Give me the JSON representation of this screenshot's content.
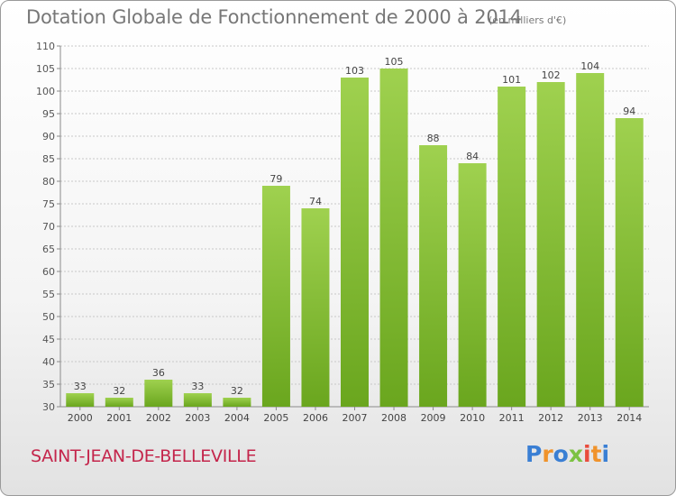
{
  "header": {
    "title": "Dotation Globale de Fonctionnement de 2000 à 2014",
    "subtitle": "(en milliers d'€)"
  },
  "footer": {
    "commune": "SAINT-JEAN-DE-BELLEVILLE",
    "logo": "Proxiti",
    "logo_colors": [
      "#3a7fd4",
      "#f0932b",
      "#3a7fd4",
      "#7cc242",
      "#e94c3d",
      "#f0932b",
      "#3a7fd4"
    ]
  },
  "chart_data": {
    "type": "bar",
    "title": "Dotation Globale de Fonctionnement de 2000 à 2014",
    "subtitle": "(en milliers d'€)",
    "categories": [
      "2000",
      "2001",
      "2002",
      "2003",
      "2004",
      "2005",
      "2006",
      "2007",
      "2008",
      "2009",
      "2010",
      "2011",
      "2012",
      "2013",
      "2014"
    ],
    "values": [
      33,
      32,
      36,
      33,
      32,
      79,
      74,
      103,
      105,
      88,
      84,
      101,
      102,
      104,
      94
    ],
    "ylim": [
      30,
      110
    ],
    "yticks": [
      30,
      35,
      40,
      45,
      50,
      55,
      60,
      65,
      70,
      75,
      80,
      85,
      90,
      95,
      100,
      105,
      110
    ],
    "grid": true,
    "bar_color": "#8cc63f",
    "grid_color": "#c8c8c8"
  }
}
